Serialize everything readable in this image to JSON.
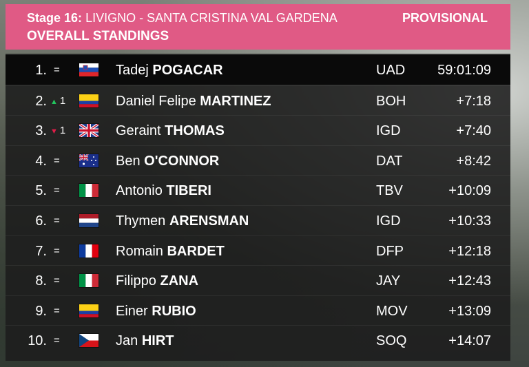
{
  "header": {
    "stage": "Stage 16:",
    "route": "LIVIGNO - SANTA CRISTINA VAL GARDENA",
    "status": "PROVISIONAL",
    "title": "OVERALL STANDINGS"
  },
  "standings": [
    {
      "pos": "1.",
      "change": "=",
      "flag": "slovenia-flag",
      "first": "Tadej",
      "last": "POGACAR",
      "team": "UAD",
      "time": "59:01:09"
    },
    {
      "pos": "2.",
      "change": "1",
      "change_dir": "up",
      "flag": "colombia-flag",
      "first": "Daniel Felipe",
      "last": "MARTINEZ",
      "team": "BOH",
      "time": "+7:18"
    },
    {
      "pos": "3.",
      "change": "1",
      "change_dir": "down",
      "flag": "uk-flag",
      "first": "Geraint",
      "last": "THOMAS",
      "team": "IGD",
      "time": "+7:40"
    },
    {
      "pos": "4.",
      "change": "=",
      "flag": "australia-flag",
      "first": "Ben",
      "last": "O'CONNOR",
      "team": "DAT",
      "time": "+8:42"
    },
    {
      "pos": "5.",
      "change": "=",
      "flag": "italy-flag",
      "first": "Antonio",
      "last": "TIBERI",
      "team": "TBV",
      "time": "+10:09"
    },
    {
      "pos": "6.",
      "change": "=",
      "flag": "netherlands-flag",
      "first": "Thymen",
      "last": "ARENSMAN",
      "team": "IGD",
      "time": "+10:33"
    },
    {
      "pos": "7.",
      "change": "=",
      "flag": "france-flag",
      "first": "Romain",
      "last": "BARDET",
      "team": "DFP",
      "time": "+12:18"
    },
    {
      "pos": "8.",
      "change": "=",
      "flag": "italy-flag",
      "first": "Filippo",
      "last": "ZANA",
      "team": "JAY",
      "time": "+12:43"
    },
    {
      "pos": "9.",
      "change": "=",
      "flag": "colombia-flag",
      "first": "Einer",
      "last": "RUBIO",
      "team": "MOV",
      "time": "+13:09"
    },
    {
      "pos": "10.",
      "change": "=",
      "flag": "czech-flag",
      "first": "Jan",
      "last": "HIRT",
      "team": "SOQ",
      "time": "+14:07"
    }
  ],
  "colors": {
    "header_bg": "#e05a85",
    "arrow_up": "#22c55e",
    "arrow_down": "#e11d48"
  }
}
